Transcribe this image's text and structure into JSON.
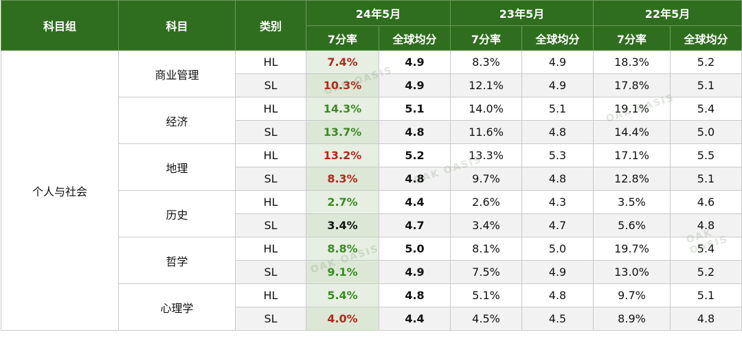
{
  "headers": {
    "subject_group": "科目组",
    "subject": "科目",
    "category": "类别",
    "periods": [
      "24年5月",
      "23年5月",
      "22年5月"
    ],
    "rate": "7分率",
    "avg": "全球均分"
  },
  "group_name": "个人与社会",
  "subjects": [
    {
      "name": "商业管理",
      "rows": [
        {
          "cat": "HL",
          "r24": "7.4%",
          "r24_color": "red",
          "a24": "4.9",
          "r23": "8.3%",
          "a23": "4.9",
          "r22": "18.3%",
          "a22": "5.2"
        },
        {
          "cat": "SL",
          "r24": "10.3%",
          "r24_color": "red",
          "a24": "4.9",
          "r23": "12.1%",
          "a23": "4.9",
          "r22": "17.8%",
          "a22": "5.1"
        }
      ]
    },
    {
      "name": "经济",
      "rows": [
        {
          "cat": "HL",
          "r24": "14.3%",
          "r24_color": "green",
          "a24": "5.1",
          "r23": "14.0%",
          "a23": "5.1",
          "r22": "19.1%",
          "a22": "5.4"
        },
        {
          "cat": "SL",
          "r24": "13.7%",
          "r24_color": "green",
          "a24": "4.8",
          "r23": "11.6%",
          "a23": "4.8",
          "r22": "14.4%",
          "a22": "5.0"
        }
      ]
    },
    {
      "name": "地理",
      "rows": [
        {
          "cat": "HL",
          "r24": "13.2%",
          "r24_color": "red",
          "a24": "5.2",
          "r23": "13.3%",
          "a23": "5.3",
          "r22": "17.1%",
          "a22": "5.5"
        },
        {
          "cat": "SL",
          "r24": "8.3%",
          "r24_color": "red",
          "a24": "4.8",
          "r23": "9.7%",
          "a23": "4.8",
          "r22": "12.8%",
          "a22": "5.1"
        }
      ]
    },
    {
      "name": "历史",
      "rows": [
        {
          "cat": "HL",
          "r24": "2.7%",
          "r24_color": "green",
          "a24": "4.4",
          "r23": "2.6%",
          "a23": "4.3",
          "r22": "3.5%",
          "a22": "4.6"
        },
        {
          "cat": "SL",
          "r24": "3.4%",
          "r24_color": "black",
          "a24": "4.7",
          "r23": "3.4%",
          "a23": "4.7",
          "r22": "5.6%",
          "a22": "4.8"
        }
      ]
    },
    {
      "name": "哲学",
      "rows": [
        {
          "cat": "HL",
          "r24": "8.8%",
          "r24_color": "green",
          "a24": "5.0",
          "r23": "8.1%",
          "a23": "5.0",
          "r22": "19.7%",
          "a22": "5.4"
        },
        {
          "cat": "SL",
          "r24": "9.1%",
          "r24_color": "green",
          "a24": "4.9",
          "r23": "7.5%",
          "a23": "4.9",
          "r22": "13.0%",
          "a22": "5.2"
        }
      ]
    },
    {
      "name": "心理学",
      "rows": [
        {
          "cat": "HL",
          "r24": "5.4%",
          "r24_color": "green",
          "a24": "4.8",
          "r23": "5.1%",
          "a23": "4.8",
          "r22": "9.7%",
          "a22": "5.1"
        },
        {
          "cat": "SL",
          "r24": "4.0%",
          "r24_color": "red",
          "a24": "4.4",
          "r23": "4.5%",
          "a23": "4.5",
          "r22": "8.9%",
          "a22": "4.8"
        }
      ]
    }
  ],
  "colors": {
    "header_bg": "#2f6e1f",
    "red": "#b3261e",
    "green": "#3b8a22",
    "black": "#111111"
  },
  "watermark": "OAK OASIS"
}
